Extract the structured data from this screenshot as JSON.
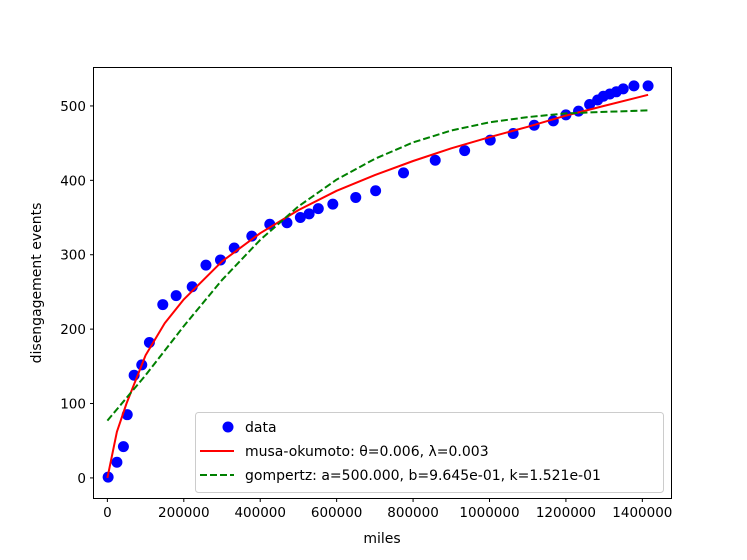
{
  "chart_data": {
    "type": "scatter",
    "title": "",
    "xlabel": "miles",
    "ylabel": "disengagement events",
    "xlim": [
      -35000,
      1475000
    ],
    "ylim": [
      -27,
      551
    ],
    "x_ticks": [
      0,
      200000,
      400000,
      600000,
      800000,
      1000000,
      1200000,
      1400000
    ],
    "y_ticks": [
      0,
      100,
      200,
      300,
      400,
      500
    ],
    "grid": false,
    "legend_position": "lower right",
    "colors": {
      "data": "#0000ff",
      "musa": "#ff0000",
      "gompertz": "#008000"
    },
    "series": [
      {
        "name": "data",
        "kind": "markers",
        "x": [
          2000,
          25000,
          42000,
          52000,
          70000,
          90000,
          110000,
          145000,
          180000,
          222000,
          258000,
          296000,
          332000,
          378000,
          425000,
          470000,
          505000,
          528000,
          552000,
          590000,
          650000,
          702000,
          775000,
          858000,
          935000,
          1002000,
          1062000,
          1117000,
          1167000,
          1200000,
          1233000,
          1262000,
          1283000,
          1298000,
          1315000,
          1332000,
          1350000,
          1378000,
          1415000
        ],
        "y": [
          1,
          21,
          42,
          85,
          138,
          152,
          182,
          233,
          245,
          257,
          286,
          293,
          309,
          325,
          341,
          343,
          350,
          355,
          362,
          368,
          377,
          386,
          410,
          427,
          440,
          454,
          463,
          474,
          480,
          488,
          493,
          502,
          508,
          513,
          516,
          519,
          523,
          527,
          527
        ]
      },
      {
        "name": "musa-okumoto: θ=0.006, λ=0.003",
        "kind": "line",
        "x": [
          0,
          25000,
          50000,
          100000,
          150000,
          200000,
          300000,
          400000,
          500000,
          600000,
          700000,
          800000,
          900000,
          1000000,
          1100000,
          1200000,
          1300000,
          1415000
        ],
        "y": [
          0,
          62,
          100,
          165,
          208,
          240,
          291,
          329,
          360,
          386,
          407,
          426,
          443,
          458,
          472,
          487,
          500,
          515
        ]
      },
      {
        "name": "gompertz: a=500.000, b=9.645e-01, k=1.521e-01",
        "kind": "dashed-line",
        "x": [
          0,
          100000,
          200000,
          300000,
          400000,
          500000,
          600000,
          700000,
          800000,
          900000,
          1000000,
          1100000,
          1200000,
          1300000,
          1415000
        ],
        "y": [
          77,
          138,
          204,
          266,
          320,
          365,
          401,
          429,
          451,
          467,
          478,
          485,
          490,
          492,
          494
        ]
      }
    ]
  }
}
